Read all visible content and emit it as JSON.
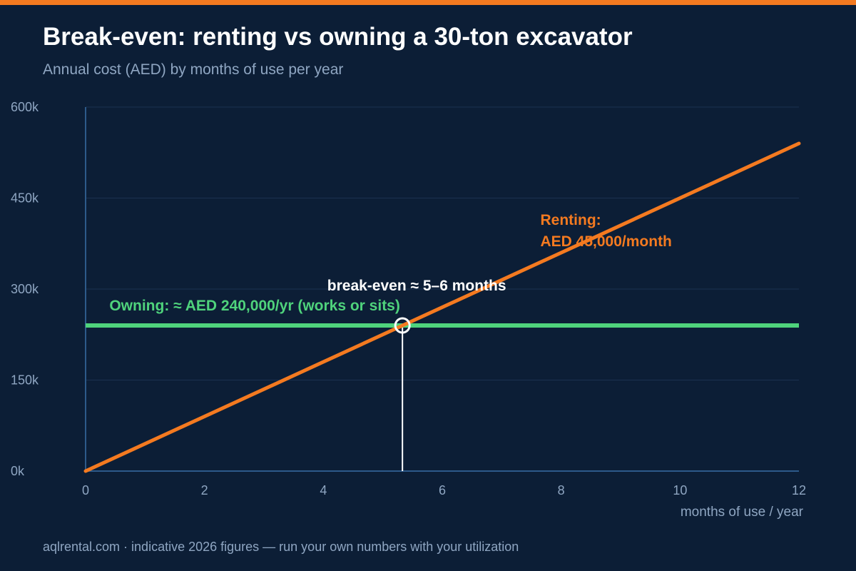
{
  "header": {
    "title": "Break-even: renting vs owning a 30-ton excavator",
    "subtitle": "Annual cost (AED) by months of use per year"
  },
  "footer": {
    "text": "aqlrental.com  ·  indicative 2026 figures — run your own numbers with your utilization"
  },
  "colors": {
    "accent": "#f47a20",
    "renting": "#f47a20",
    "owning": "#4fd37c",
    "breakeven": "#ffffff",
    "background": "#0c1e36"
  },
  "chart_data": {
    "type": "line",
    "title": "Break-even: renting vs owning a 30-ton excavator",
    "subtitle": "Annual cost (AED) by months of use per year",
    "xlabel": "months of use / year",
    "ylabel": "",
    "xlim": [
      0,
      12
    ],
    "ylim": [
      0,
      600000
    ],
    "x_ticks": [
      0,
      2,
      4,
      6,
      8,
      10,
      12
    ],
    "y_ticks": [
      0,
      150000,
      300000,
      450000,
      600000
    ],
    "y_tick_labels": [
      "0k",
      "150k",
      "300k",
      "450k",
      "600k"
    ],
    "grid": "horizontal",
    "series": [
      {
        "key": "renting",
        "x": [
          0,
          12
        ],
        "y": [
          0,
          540000
        ]
      },
      {
        "key": "owning",
        "x": [
          0,
          12
        ],
        "y": [
          240000,
          240000
        ]
      }
    ],
    "annotations": {
      "owning": "Owning: ≈ AED 240,000/yr (works or sits)",
      "renting_line1": "Renting:",
      "renting_line2": "AED 45,000/month",
      "breakeven": "break-even ≈ 5–6 months"
    },
    "breakeven_point": {
      "x": 5.33,
      "y": 240000
    }
  }
}
